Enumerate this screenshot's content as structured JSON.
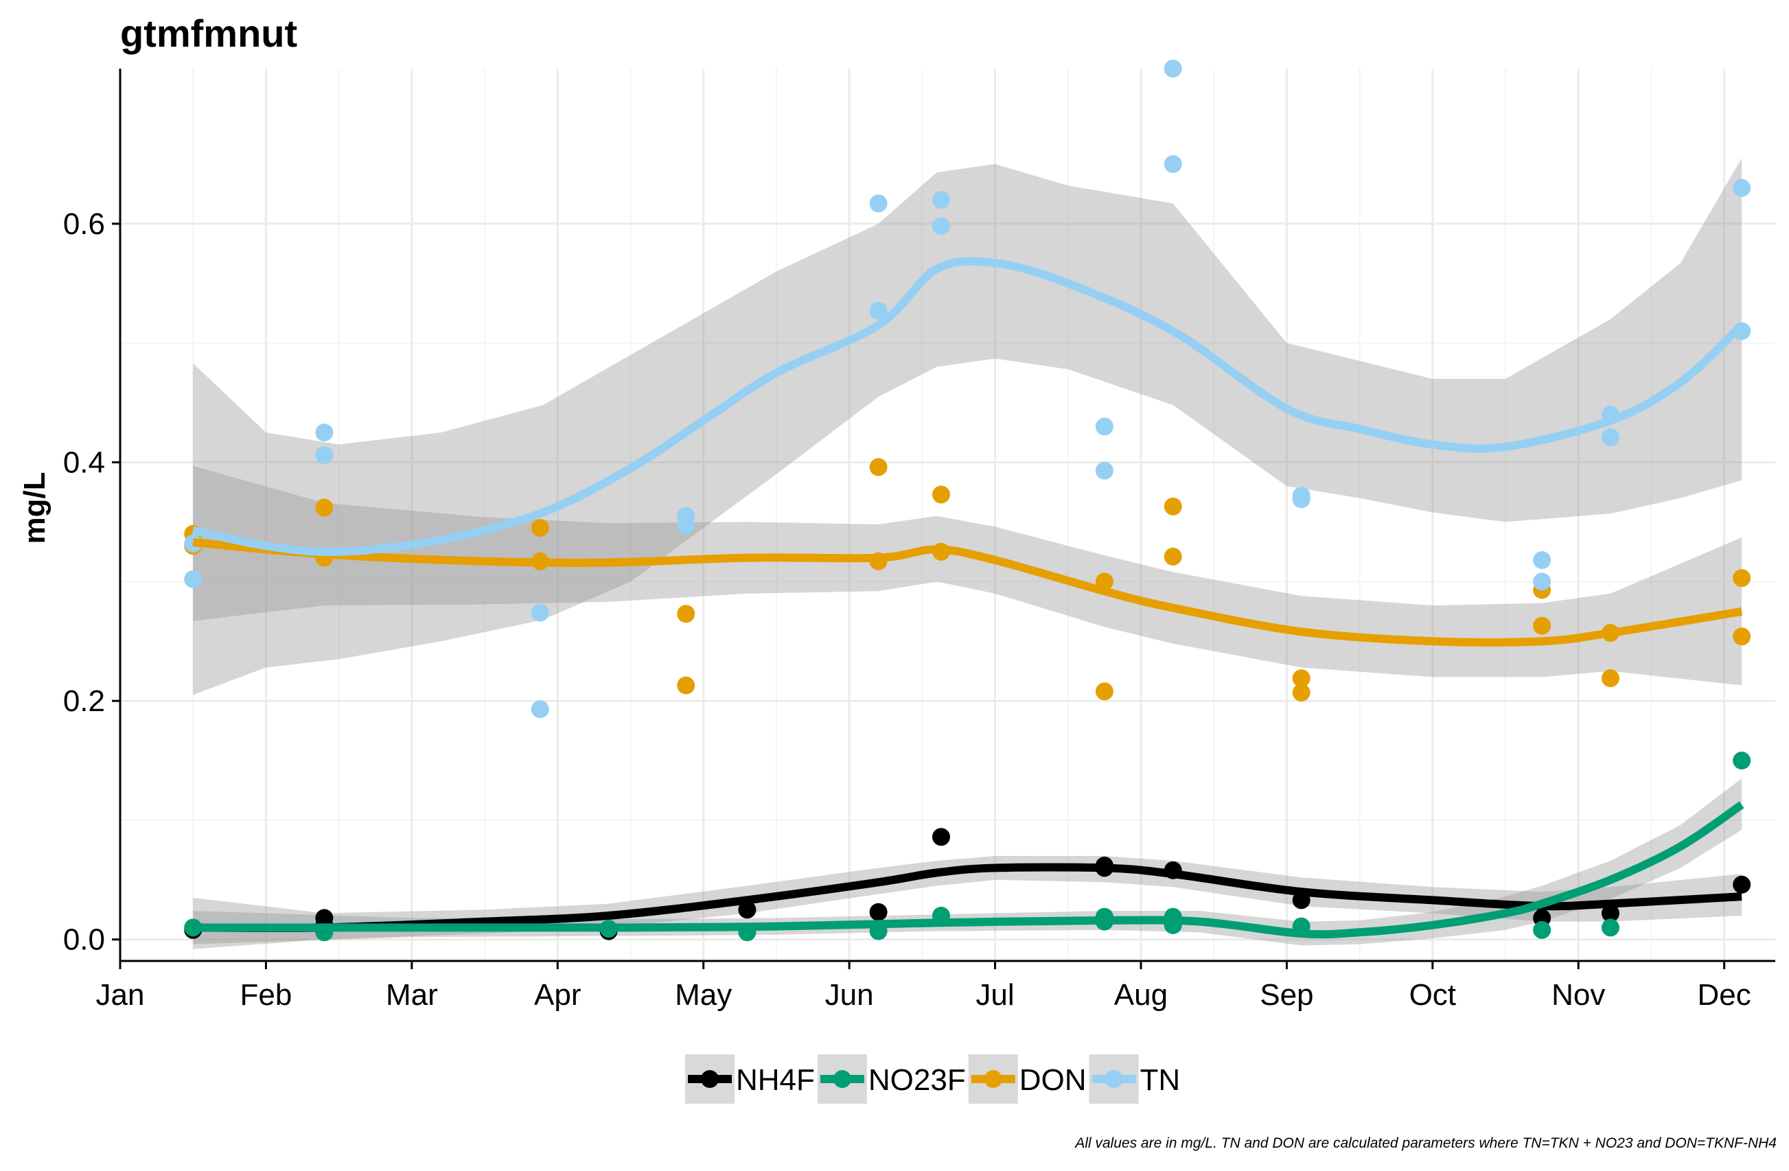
{
  "chart_data": {
    "type": "scatter",
    "title": "gtmfmnut",
    "xlabel": "",
    "ylabel": "mg/L",
    "caption": "All values are in mg/L. TN and DON are calculated parameters where TN=TKN + NO23 and DON=TKNF-NH4",
    "x_unit": "month (1 = Jan 1)",
    "xlim": [
      1,
      12.35
    ],
    "ylim": [
      -0.018,
      0.73
    ],
    "x_tick_values": [
      1,
      2,
      3,
      4,
      5,
      6,
      7,
      8,
      9,
      10,
      11,
      12
    ],
    "x_tick_labels": [
      "Jan",
      "Feb",
      "Mar",
      "Apr",
      "May",
      "Jun",
      "Jul",
      "Aug",
      "Sep",
      "Oct",
      "Nov",
      "Dec"
    ],
    "y_tick_values": [
      0,
      0.2,
      0.4,
      0.6
    ],
    "y_tick_labels": [
      "0.0",
      "0.2",
      "0.4",
      "0.6"
    ],
    "grid": true,
    "legend_position": "bottom",
    "series": [
      {
        "name": "NH4F",
        "color": "#000000",
        "points": [
          [
            1.5,
            0.008
          ],
          [
            2.4,
            0.018
          ],
          [
            2.4,
            0.012
          ],
          [
            4.35,
            0.007
          ],
          [
            5.3,
            0.025
          ],
          [
            6.2,
            0.023
          ],
          [
            6.63,
            0.086
          ],
          [
            7.75,
            0.062
          ],
          [
            7.75,
            0.06
          ],
          [
            8.22,
            0.058
          ],
          [
            9.1,
            0.033
          ],
          [
            10.75,
            0.018
          ],
          [
            11.22,
            0.022
          ],
          [
            12.12,
            0.046
          ]
        ],
        "smooth": [
          [
            1.5,
            0.01
          ],
          [
            2.4,
            0.01
          ],
          [
            3.5,
            0.015
          ],
          [
            4.35,
            0.02
          ],
          [
            5.3,
            0.033
          ],
          [
            6.2,
            0.048
          ],
          [
            6.6,
            0.056
          ],
          [
            7,
            0.06
          ],
          [
            7.75,
            0.06
          ],
          [
            8.22,
            0.055
          ],
          [
            9.1,
            0.04
          ],
          [
            10,
            0.033
          ],
          [
            10.75,
            0.028
          ],
          [
            11.22,
            0.03
          ],
          [
            12.12,
            0.036
          ]
        ],
        "ribbon": [
          [
            1.5,
            -0.008,
            0.035
          ],
          [
            2.4,
            0.0,
            0.022
          ],
          [
            3.5,
            0.005,
            0.025
          ],
          [
            4.35,
            0.01,
            0.03
          ],
          [
            5.3,
            0.022,
            0.045
          ],
          [
            6.2,
            0.038,
            0.06
          ],
          [
            6.6,
            0.045,
            0.066
          ],
          [
            7,
            0.05,
            0.07
          ],
          [
            7.75,
            0.048,
            0.07
          ],
          [
            8.22,
            0.044,
            0.066
          ],
          [
            9.1,
            0.028,
            0.052
          ],
          [
            10,
            0.022,
            0.044
          ],
          [
            10.75,
            0.015,
            0.04
          ],
          [
            11.22,
            0.015,
            0.044
          ],
          [
            12.12,
            0.02,
            0.055
          ]
        ]
      },
      {
        "name": "NO23F",
        "color": "#009E73",
        "points": [
          [
            1.5,
            0.01
          ],
          [
            2.4,
            0.006
          ],
          [
            4.35,
            0.009
          ],
          [
            5.3,
            0.006
          ],
          [
            6.2,
            0.007
          ],
          [
            6.63,
            0.02
          ],
          [
            7.75,
            0.019
          ],
          [
            7.75,
            0.015
          ],
          [
            8.22,
            0.019
          ],
          [
            8.22,
            0.012
          ],
          [
            9.1,
            0.011
          ],
          [
            10.75,
            0.008
          ],
          [
            11.22,
            0.01
          ],
          [
            12.12,
            0.15
          ]
        ],
        "smooth": [
          [
            1.5,
            0.01
          ],
          [
            3,
            0.01
          ],
          [
            4.5,
            0.01
          ],
          [
            5.5,
            0.011
          ],
          [
            6.6,
            0.014
          ],
          [
            7.75,
            0.016
          ],
          [
            8.4,
            0.015
          ],
          [
            9.1,
            0.005
          ],
          [
            9.5,
            0.006
          ],
          [
            10,
            0.012
          ],
          [
            10.5,
            0.022
          ],
          [
            10.75,
            0.03
          ],
          [
            11.22,
            0.05
          ],
          [
            11.7,
            0.078
          ],
          [
            12.12,
            0.113
          ]
        ],
        "ribbon": [
          [
            1.5,
            -0.004,
            0.024
          ],
          [
            3,
            0.002,
            0.018
          ],
          [
            4.5,
            0.003,
            0.017
          ],
          [
            5.5,
            0.004,
            0.018
          ],
          [
            6.6,
            0.007,
            0.021
          ],
          [
            7.75,
            0.008,
            0.024
          ],
          [
            8.4,
            0.006,
            0.024
          ],
          [
            9.1,
            -0.005,
            0.015
          ],
          [
            9.5,
            -0.004,
            0.016
          ],
          [
            10,
            0.001,
            0.023
          ],
          [
            10.5,
            0.008,
            0.036
          ],
          [
            10.75,
            0.015,
            0.045
          ],
          [
            11.22,
            0.034,
            0.066
          ],
          [
            11.7,
            0.06,
            0.096
          ],
          [
            12.12,
            0.092,
            0.135
          ]
        ]
      },
      {
        "name": "DON",
        "color": "#E69F00",
        "points": [
          [
            1.5,
            0.34
          ],
          [
            1.5,
            0.33
          ],
          [
            2.4,
            0.362
          ],
          [
            2.4,
            0.32
          ],
          [
            3.88,
            0.345
          ],
          [
            3.88,
            0.317
          ],
          [
            4.88,
            0.273
          ],
          [
            4.88,
            0.213
          ],
          [
            6.2,
            0.396
          ],
          [
            6.2,
            0.317
          ],
          [
            6.63,
            0.373
          ],
          [
            6.63,
            0.325
          ],
          [
            7.75,
            0.3
          ],
          [
            7.75,
            0.208
          ],
          [
            8.22,
            0.363
          ],
          [
            8.22,
            0.321
          ],
          [
            9.1,
            0.219
          ],
          [
            9.1,
            0.207
          ],
          [
            10.75,
            0.293
          ],
          [
            10.75,
            0.263
          ],
          [
            11.22,
            0.257
          ],
          [
            11.22,
            0.219
          ],
          [
            12.12,
            0.303
          ],
          [
            12.12,
            0.254
          ]
        ],
        "smooth": [
          [
            1.5,
            0.333
          ],
          [
            2.4,
            0.323
          ],
          [
            3.5,
            0.317
          ],
          [
            4.35,
            0.316
          ],
          [
            5.3,
            0.32
          ],
          [
            6.2,
            0.32
          ],
          [
            6.6,
            0.327
          ],
          [
            7,
            0.318
          ],
          [
            7.75,
            0.292
          ],
          [
            8.22,
            0.278
          ],
          [
            9.1,
            0.258
          ],
          [
            10,
            0.25
          ],
          [
            10.75,
            0.25
          ],
          [
            11.22,
            0.257
          ],
          [
            12.12,
            0.275
          ]
        ],
        "ribbon": [
          [
            1.5,
            0.267,
            0.397
          ],
          [
            2.4,
            0.28,
            0.366
          ],
          [
            3.5,
            0.281,
            0.354
          ],
          [
            4.35,
            0.283,
            0.349
          ],
          [
            5.3,
            0.29,
            0.35
          ],
          [
            6.2,
            0.292,
            0.348
          ],
          [
            6.6,
            0.3,
            0.355
          ],
          [
            7,
            0.29,
            0.346
          ],
          [
            7.75,
            0.262,
            0.322
          ],
          [
            8.22,
            0.248,
            0.308
          ],
          [
            9.1,
            0.228,
            0.288
          ],
          [
            10,
            0.22,
            0.28
          ],
          [
            10.75,
            0.22,
            0.282
          ],
          [
            11.22,
            0.225,
            0.29
          ],
          [
            12.12,
            0.213,
            0.337
          ]
        ]
      },
      {
        "name": "TN",
        "color": "#96CFF4",
        "points": [
          [
            1.5,
            0.332
          ],
          [
            1.5,
            0.302
          ],
          [
            2.4,
            0.425
          ],
          [
            2.4,
            0.406
          ],
          [
            3.88,
            0.274
          ],
          [
            3.88,
            0.193
          ],
          [
            4.88,
            0.355
          ],
          [
            4.88,
            0.347
          ],
          [
            6.2,
            0.617
          ],
          [
            6.2,
            0.527
          ],
          [
            6.63,
            0.62
          ],
          [
            6.63,
            0.598
          ],
          [
            7.75,
            0.43
          ],
          [
            7.75,
            0.393
          ],
          [
            8.22,
            0.73
          ],
          [
            8.22,
            0.65
          ],
          [
            9.1,
            0.372
          ],
          [
            9.1,
            0.369
          ],
          [
            10.75,
            0.318
          ],
          [
            10.75,
            0.3
          ],
          [
            11.22,
            0.44
          ],
          [
            11.22,
            0.421
          ],
          [
            12.12,
            0.63
          ],
          [
            12.12,
            0.51
          ]
        ],
        "smooth": [
          [
            1.5,
            0.343
          ],
          [
            2,
            0.33
          ],
          [
            2.5,
            0.325
          ],
          [
            3.2,
            0.335
          ],
          [
            3.9,
            0.358
          ],
          [
            4.5,
            0.395
          ],
          [
            5,
            0.435
          ],
          [
            5.5,
            0.475
          ],
          [
            6.2,
            0.515
          ],
          [
            6.6,
            0.562
          ],
          [
            7,
            0.567
          ],
          [
            7.5,
            0.55
          ],
          [
            8.22,
            0.51
          ],
          [
            9,
            0.445
          ],
          [
            9.5,
            0.428
          ],
          [
            10,
            0.415
          ],
          [
            10.5,
            0.413
          ],
          [
            11.22,
            0.435
          ],
          [
            11.7,
            0.467
          ],
          [
            12.12,
            0.515
          ]
        ],
        "ribbon": [
          [
            1.5,
            0.205,
            0.483
          ],
          [
            2,
            0.228,
            0.425
          ],
          [
            2.5,
            0.235,
            0.415
          ],
          [
            3.2,
            0.25,
            0.425
          ],
          [
            3.9,
            0.268,
            0.448
          ],
          [
            4.5,
            0.3,
            0.49
          ],
          [
            5,
            0.345,
            0.525
          ],
          [
            5.5,
            0.39,
            0.56
          ],
          [
            6.2,
            0.455,
            0.6
          ],
          [
            6.6,
            0.48,
            0.643
          ],
          [
            7,
            0.487,
            0.65
          ],
          [
            7.5,
            0.478,
            0.632
          ],
          [
            8.22,
            0.448,
            0.617
          ],
          [
            9,
            0.38,
            0.5
          ],
          [
            9.5,
            0.37,
            0.485
          ],
          [
            10,
            0.358,
            0.47
          ],
          [
            10.5,
            0.35,
            0.47
          ],
          [
            11.22,
            0.357,
            0.52
          ],
          [
            11.7,
            0.37,
            0.567
          ],
          [
            12.12,
            0.385,
            0.655
          ]
        ]
      }
    ]
  }
}
